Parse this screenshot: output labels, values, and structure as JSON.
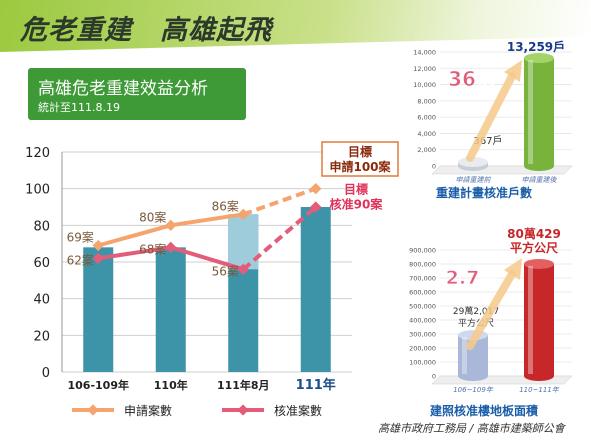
{
  "slide": {
    "title": "危老重建　高雄起飛",
    "subtitle": "高雄危老重建效益分析",
    "subtitle_date": "統計至111.8.19",
    "footer": "高雄市政府工務局 / 高雄市建築師公會",
    "colors": {
      "band": "#9bc93f",
      "subtitle_box": "#3d9a37",
      "bar": "#3d93a8",
      "applied": "#f5a46e",
      "approved": "#e35d7a",
      "accent": "#e0325a"
    }
  },
  "chart_data": [
    {
      "type": "bar",
      "categories": [
        "106-109年",
        "110年",
        "111年8月",
        "111年"
      ],
      "ylim": [
        0,
        120
      ],
      "yticks": [
        0,
        20,
        40,
        60,
        80,
        100,
        120
      ],
      "grid": true,
      "bars": [
        68,
        68,
        86,
        90
      ],
      "series": [
        {
          "name": "申請案數",
          "values": [
            69,
            80,
            86,
            100
          ],
          "labels": [
            "69案",
            "80案",
            "86案",
            ""
          ]
        },
        {
          "name": "核准案數",
          "values": [
            62,
            68,
            56,
            90
          ],
          "labels": [
            "62案",
            "68案",
            "56案",
            ""
          ]
        }
      ],
      "targets": [
        {
          "title": "目標",
          "text": "申請100案"
        },
        {
          "title": "目標",
          "text": "核准90案"
        }
      ],
      "legend_position": "bottom"
    },
    {
      "type": "bar",
      "categories": [
        "申請重建前",
        "申請重建後"
      ],
      "values": [
        367,
        13259
      ],
      "value_labels": [
        "367戶",
        "13,259戶"
      ],
      "ylim": [
        0,
        14000
      ],
      "yticks": [
        "0",
        "2,000",
        "4,000",
        "6,000",
        "8,000",
        "10,000",
        "12,000",
        "14,000"
      ],
      "multiplier": "36倍",
      "caption": "重建計畫核准戶數"
    },
    {
      "type": "bar",
      "categories": [
        "106~109年",
        "110~111年"
      ],
      "values": [
        292017,
        800429
      ],
      "value_labels": [
        "29萬2,017平方公尺",
        "80萬429平方公尺"
      ],
      "ylim": [
        0,
        900000
      ],
      "yticks": [
        "0",
        "100,000",
        "200,000",
        "300,000",
        "400,000",
        "500,000",
        "600,000",
        "700,000",
        "800,000",
        "900,000"
      ],
      "multiplier": "2.7倍",
      "caption": "建照核准樓地板面積"
    }
  ]
}
